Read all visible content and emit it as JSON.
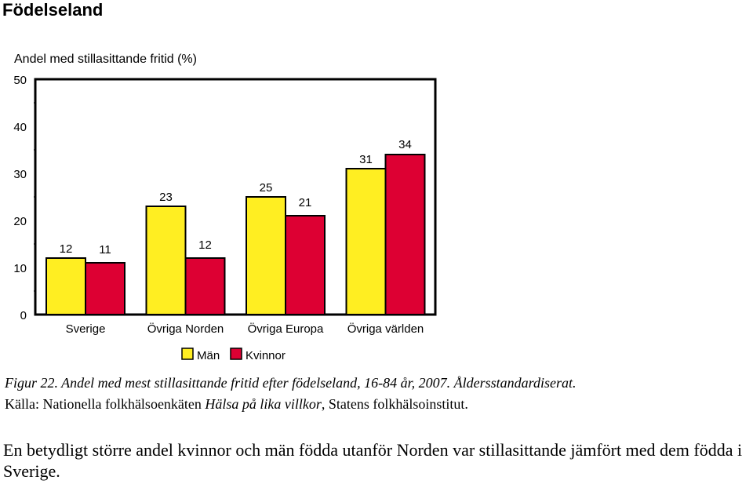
{
  "page": {
    "heading": "Födelseland",
    "caption_line1": "Figur 22. Andel med mest stillasittande fritid efter födelseland, 16-84 år, 2007. Åldersstandardiserat.",
    "caption_line2_prefix": "Källa: Nationella folkhälsoenkäten ",
    "caption_line2_italic": "Hälsa på lika villkor",
    "caption_line2_suffix": ", Statens folkhälsoinstitut.",
    "body_text": "En betydligt större andel kvinnor och män födda utanför Norden var stillasittande jämfört med dem födda i Sverige."
  },
  "chart_data": {
    "type": "bar",
    "title": "Andel med stillasittande fritid (%)",
    "categories": [
      "Sverige",
      "Övriga Norden",
      "Övriga Europa",
      "Övriga världen"
    ],
    "series": [
      {
        "name": "Män",
        "color": "#ffee22",
        "values": [
          12,
          23,
          25,
          31
        ]
      },
      {
        "name": "Kvinnor",
        "color": "#dd0033",
        "values": [
          11,
          12,
          21,
          34
        ]
      }
    ],
    "ylim": [
      0,
      50
    ],
    "yticks": [
      "0",
      "10",
      "20",
      "30",
      "40",
      "50"
    ],
    "legend_position": "bottom",
    "grid": false
  }
}
